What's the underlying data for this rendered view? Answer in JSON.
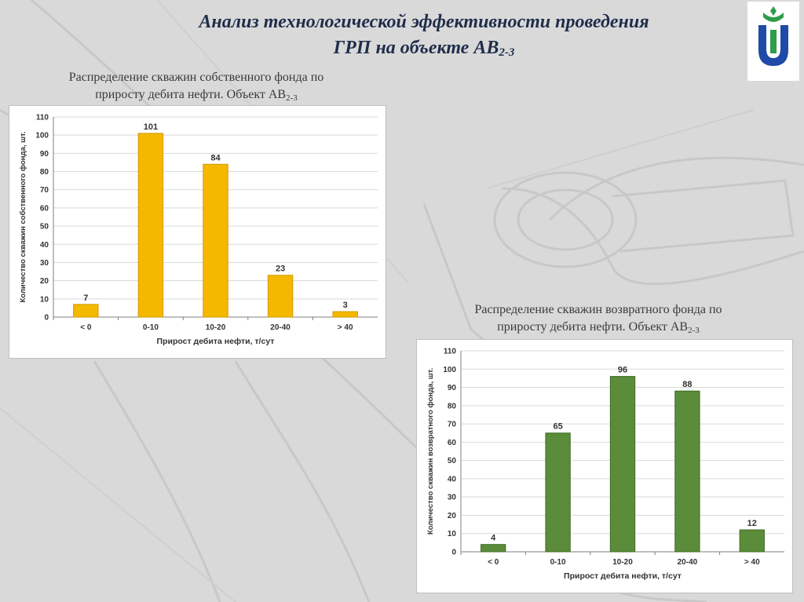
{
  "slide": {
    "title_line1": "Анализ технологической эффективности проведения",
    "title_line2_main": "ГРП на объекте АВ",
    "title_line2_sub": "2-3"
  },
  "captions": {
    "chart1_line1": "Распределение скважин собственного фонда по",
    "chart1_line2_main": "приросту дебита нефти. Объект АВ",
    "chart1_line2_sub": "2-3",
    "chart2_line1": "Распределение скважин возвратного фонда по",
    "chart2_line2_main": "приросту дебита нефти. Объект АВ",
    "chart2_line2_sub": "2-3"
  },
  "chart_data": [
    {
      "type": "bar",
      "categories": [
        "< 0",
        "0-10",
        "10-20",
        "20-40",
        "> 40"
      ],
      "values": [
        7,
        101,
        84,
        23,
        3
      ],
      "title": "",
      "xlabel": "Прирост дебита нефти, т/сут",
      "ylabel": "Количество скважин собственного фонда, шт.",
      "ylim": [
        0,
        110
      ],
      "yticks": [
        0,
        10,
        20,
        30,
        40,
        50,
        60,
        70,
        80,
        90,
        100,
        110
      ],
      "grid": true,
      "legend": "none",
      "bar_color": "#f5b800",
      "bar_edge": "#d39a00"
    },
    {
      "type": "bar",
      "categories": [
        "< 0",
        "0-10",
        "10-20",
        "20-40",
        "> 40"
      ],
      "values": [
        4,
        65,
        96,
        88,
        12
      ],
      "title": "",
      "xlabel": "Прирост дебита нефти, т/сут",
      "ylabel": "Количество скважин возвратного фонда, шт.",
      "ylim": [
        0,
        110
      ],
      "yticks": [
        0,
        10,
        20,
        30,
        40,
        50,
        60,
        70,
        80,
        90,
        100,
        110
      ],
      "grid": true,
      "legend": "none",
      "bar_color": "#5b8c3a",
      "bar_edge": "#3f6d25"
    }
  ],
  "colors": {
    "background": "#d9d9d9",
    "title": "#1f2d4a",
    "logo_green": "#2f9d4a",
    "logo_blue": "#1f4aa8"
  },
  "icons": {
    "logo": "university-logo-icon"
  }
}
